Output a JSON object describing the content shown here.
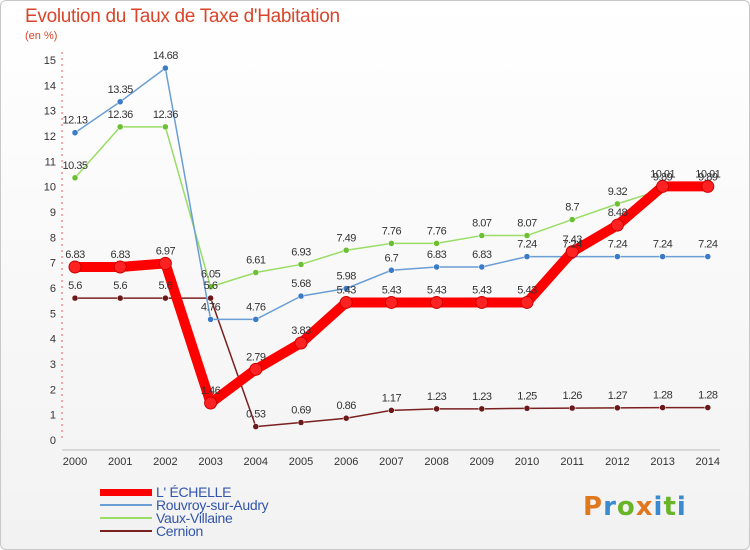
{
  "title": "Evolution du Taux de Taxe d'Habitation",
  "subtitle": "(en %)",
  "logo": [
    "P",
    "r",
    "o",
    "x",
    "i",
    "t",
    "i"
  ],
  "logo_colors": [
    "#e07820",
    "#3a8ad0",
    "#6ab42a",
    "#e07820",
    "#3a8ad0",
    "#6ab42a",
    "#3a8ad0"
  ],
  "legend": [
    {
      "label": "L' ÉCHELLE",
      "color": "#ff0000",
      "width": 7
    },
    {
      "label": "Rouvroy-sur-Audry",
      "color": "#6a9ed4",
      "width": 2
    },
    {
      "label": "Vaux-Villaine",
      "color": "#99dd66",
      "width": 2
    },
    {
      "label": "Cernion",
      "color": "#7a2020",
      "width": 2
    }
  ],
  "chart_data": {
    "type": "line",
    "title": "Evolution du Taux de Taxe d'Habitation",
    "ylabel": "(en %)",
    "x": [
      "2000",
      "2001",
      "2002",
      "2003",
      "2004",
      "2005",
      "2006",
      "2007",
      "2008",
      "2009",
      "2010",
      "2011",
      "2012",
      "2013",
      "2014"
    ],
    "ylim": [
      0,
      15
    ],
    "yticks": [
      "0",
      "1",
      "2",
      "3",
      "4",
      "5",
      "6",
      "7",
      "8",
      "9",
      "10",
      "11",
      "12",
      "13",
      "14",
      "15"
    ],
    "grid": false,
    "series": [
      {
        "name": "L' ÉCHELLE",
        "color": "#ff0000",
        "marker": "#ff2222",
        "values": [
          6.83,
          6.83,
          6.97,
          1.46,
          2.79,
          3.83,
          5.43,
          5.43,
          5.43,
          5.43,
          5.43,
          7.43,
          8.48,
          10.01,
          10.01
        ],
        "labels": [
          "6.83",
          "6.83",
          "6.97",
          "1.46",
          "2.79",
          "3.83",
          "5.43",
          "5.43",
          "5.43",
          "5.43",
          "5.43",
          "7.43",
          "8.48",
          "10.01",
          "10.01"
        ]
      },
      {
        "name": "Rouvroy-sur-Audry",
        "color": "#6a9ed4",
        "marker": "#3a7ac8",
        "values": [
          12.13,
          13.35,
          14.68,
          4.76,
          4.76,
          5.68,
          5.98,
          6.7,
          6.83,
          6.83,
          7.24,
          7.24,
          7.24,
          7.24,
          7.24
        ],
        "labels": [
          "12.13",
          "13.35",
          "14.68",
          "4.76",
          "4.76",
          "5.68",
          "5.98",
          "6.7",
          "6.83",
          "6.83",
          "7.24",
          "7.24",
          "7.24",
          "7.24",
          "7.24"
        ]
      },
      {
        "name": "Vaux-Villaine",
        "color": "#99dd66",
        "marker": "#6ac030",
        "values": [
          10.35,
          12.36,
          12.36,
          6.05,
          6.61,
          6.93,
          7.49,
          7.76,
          7.76,
          8.07,
          8.07,
          8.7,
          9.32,
          9.89,
          9.89
        ],
        "labels": [
          "10.35",
          "12.36",
          "12.36",
          "6.05",
          "6.61",
          "6.93",
          "7.49",
          "7.76",
          "7.76",
          "8.07",
          "8.07",
          "8.7",
          "9.32",
          "9.89",
          "9.89"
        ]
      },
      {
        "name": "Cernion",
        "color": "#7a2020",
        "marker": "#6a1818",
        "values": [
          5.6,
          5.6,
          5.6,
          5.6,
          0.53,
          0.69,
          0.86,
          1.17,
          1.23,
          1.23,
          1.25,
          1.26,
          1.27,
          1.28,
          1.28
        ],
        "labels": [
          "5.6",
          "5.6",
          "5.6",
          "5.6",
          "0.53",
          "0.69",
          "0.86",
          "1.17",
          "1.23",
          "1.23",
          "1.25",
          "1.26",
          "1.27",
          "1.28",
          "1.28"
        ]
      }
    ]
  }
}
